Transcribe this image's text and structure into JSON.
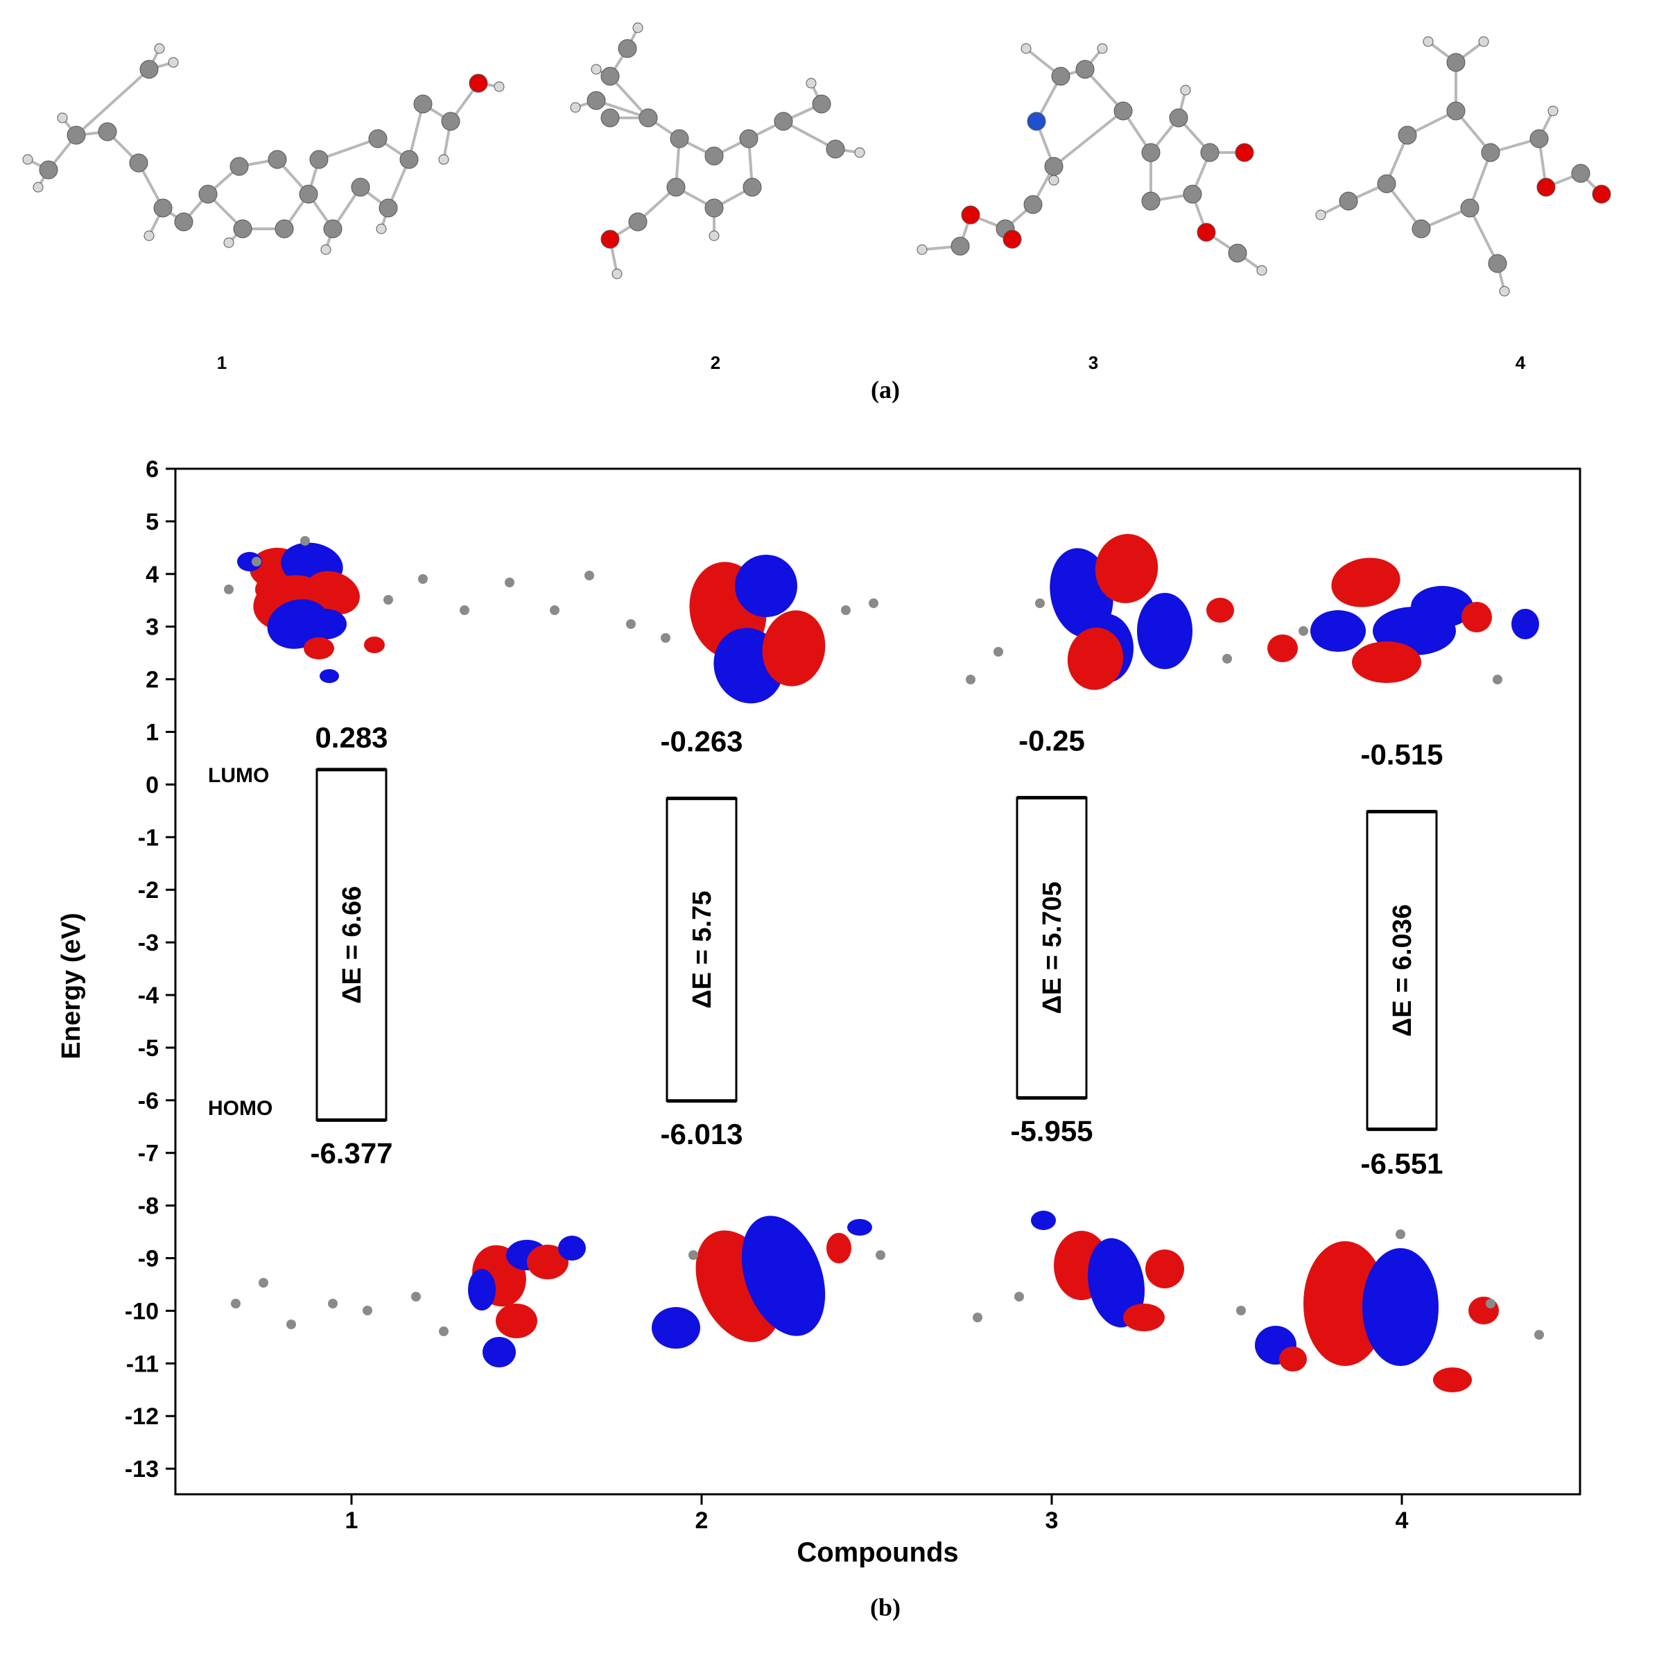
{
  "panel_a": {
    "caption": "(a)",
    "compounds": [
      {
        "label": "1",
        "name": "1"
      },
      {
        "label": "2",
        "name": "2"
      },
      {
        "label": "3",
        "name": "3"
      },
      {
        "label": "4",
        "name": "4"
      }
    ]
  },
  "panel_b": {
    "caption": "(b)"
  },
  "colors": {
    "carbon": "#8a8a8a",
    "hydrogen": "#d9d9d9",
    "oxygen": "#e00000",
    "nitrogen": "#2050d0",
    "orbital_positive": "#e01010",
    "orbital_negative": "#1010e0"
  },
  "chart_data": {
    "type": "bar",
    "xlabel": "Compounds",
    "ylabel": "Energy (eV)",
    "ylim": [
      -13,
      6
    ],
    "yticks": [
      6,
      5,
      4,
      3,
      2,
      1,
      0,
      -1,
      -2,
      -3,
      -4,
      -5,
      -6,
      -7,
      -8,
      -9,
      -10,
      -11,
      -12,
      -13
    ],
    "categories": [
      "1",
      "2",
      "3",
      "4"
    ],
    "lumo_label": "LUMO",
    "homo_label": "HOMO",
    "series": [
      {
        "name": "LUMO",
        "values": [
          0.283,
          -0.263,
          -0.25,
          -0.515
        ]
      },
      {
        "name": "HOMO",
        "values": [
          -6.377,
          -6.013,
          -5.955,
          -6.551
        ]
      }
    ],
    "lumo_labels": [
      "0.283",
      "-0.263",
      "-0.25",
      "-0.515"
    ],
    "homo_labels": [
      "-6.377",
      "-6.013",
      "-5.955",
      "-6.551"
    ],
    "gaps": [
      "ΔE = 6.66",
      "ΔE = 5.75",
      "ΔE = 5.705",
      "ΔE = 6.036"
    ]
  }
}
